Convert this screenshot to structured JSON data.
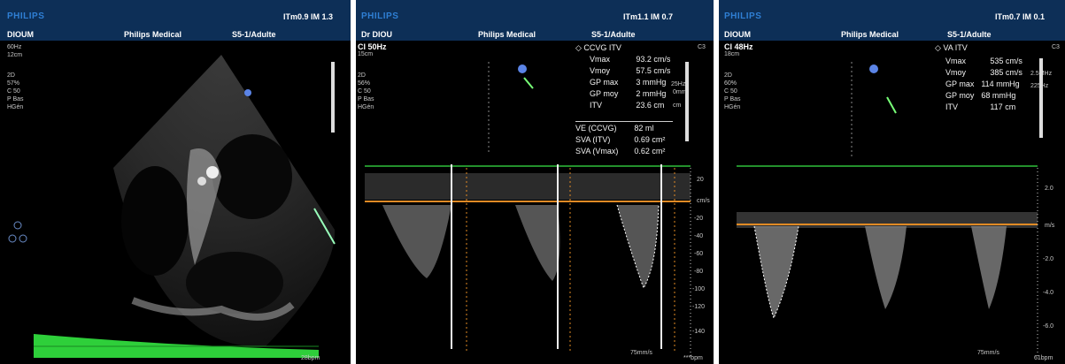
{
  "panel1": {
    "brand": "PHILIPS",
    "patient": "DIOUM",
    "center": "Philips Medical",
    "probe": "S5-1/Adulte",
    "indices": "ITm0.9  IM 1.3",
    "params": [
      "60Hz",
      "12cm"
    ],
    "mode": [
      "2D",
      "57%",
      "C 50",
      "P Bas",
      "HGén"
    ],
    "bpm": "28bpm"
  },
  "panel2": {
    "brand": "PHILIPS",
    "patient": "Dr DIOU",
    "center": "Philips Medical",
    "probe": "S5-1/Adulte",
    "indices": "ITm1.1  IM 0.7",
    "ci": "CI 50Hz",
    "depth": "15cm",
    "mode": [
      "2D",
      "56%",
      "C 50",
      "P Bas",
      "HGén"
    ],
    "corner": "C3",
    "meas_title": "CCVG ITV",
    "measurements": [
      {
        "label": "Vmax",
        "value": "93.2 cm/s"
      },
      {
        "label": "Vmoy",
        "value": "57.5 cm/s"
      },
      {
        "label": "GP max",
        "value": "3 mmHg"
      },
      {
        "label": "GP moy",
        "value": "2 mmHg"
      },
      {
        "label": "ITV",
        "value": "23.6 cm"
      }
    ],
    "side_params": [
      "25Hz",
      "0mm",
      "cm"
    ],
    "derived": [
      {
        "label": "VE (CCVG)",
        "value": "82 ml"
      },
      {
        "label": "SVA (ITV)",
        "value": "0.69 cm²"
      },
      {
        "label": "SVA (Vmax)",
        "value": "0.62 cm²"
      }
    ],
    "axis_unit": "cm/s",
    "axis_ticks": [
      "20",
      "-20",
      "-40",
      "-60",
      "-80",
      "-100",
      "-120",
      "-140"
    ],
    "sweep": "75mm/s",
    "bpm": "***bpm"
  },
  "panel3": {
    "brand": "PHILIPS",
    "patient": "DIOUM",
    "center": "Philips Medical",
    "probe": "S5-1/Adulte",
    "indices": "ITm0.7  IM 0.1",
    "ci": "CI 48Hz",
    "depth": "18cm",
    "mode": [
      "2D",
      "60%",
      "C 50",
      "P Bas",
      "HGén"
    ],
    "corner": "C3",
    "meas_title": "VA ITV",
    "measurements": [
      {
        "label": "Vmax",
        "value": "535 cm/s"
      },
      {
        "label": "Vmoy",
        "value": "385 cm/s"
      },
      {
        "label": "GP max",
        "value": "114 mmHg"
      },
      {
        "label": "GP moy",
        "value": "68 mmHg"
      },
      {
        "label": "ITV",
        "value": "117 cm"
      }
    ],
    "side_params": [
      "2.5MHz",
      "225Hz"
    ],
    "axis_unit": "m/s",
    "axis_ticks": [
      "2.0",
      "-2.0",
      "-4.0",
      "-6.0"
    ],
    "sweep": "75mm/s",
    "bpm": "61bpm"
  }
}
